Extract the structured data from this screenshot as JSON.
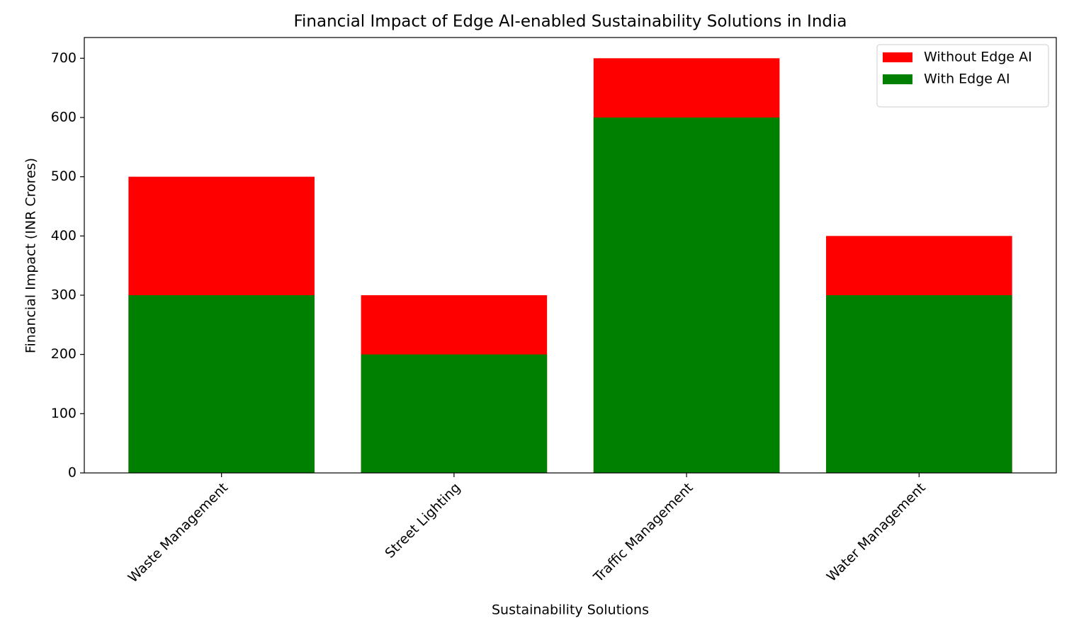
{
  "chart_data": {
    "type": "bar",
    "title": "Financial Impact of Edge AI-enabled Sustainability Solutions in India",
    "x_label": "Sustainability Solutions",
    "y_label": "Financial Impact (INR Crores)",
    "categories": [
      "Waste Management",
      "Street Lighting",
      "Traffic Management",
      "Water Management"
    ],
    "series": [
      {
        "name": "Without Edge AI",
        "color": "#ff0000",
        "values": [
          500,
          300,
          700,
          400
        ]
      },
      {
        "name": "With Edge AI",
        "color": "#008000",
        "values": [
          300,
          200,
          600,
          300
        ]
      }
    ],
    "ylim": [
      0,
      735
    ],
    "yticks": [
      0,
      100,
      200,
      300,
      400,
      500,
      600,
      700
    ],
    "legend": "upper right"
  }
}
